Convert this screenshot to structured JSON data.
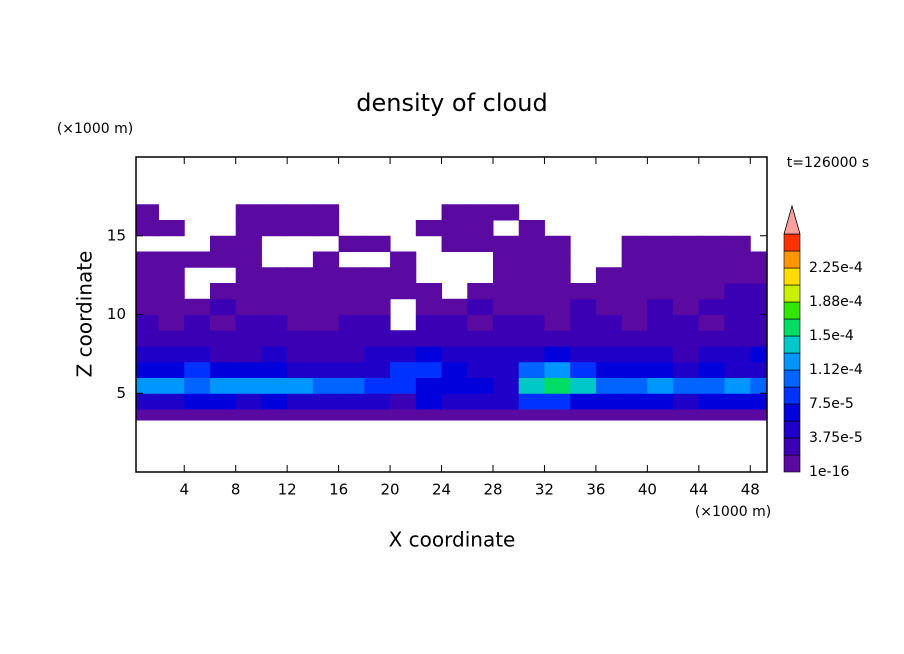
{
  "chart_data": {
    "type": "contour",
    "title": "density of cloud",
    "x_label": "X coordinate",
    "y_label": "Z coordinate",
    "x_unit": "(×1000 m)",
    "y_unit": "(×1000 m)",
    "time_label": "t=126000 s",
    "xlim": [
      0.25,
      49.3
    ],
    "ylim": [
      0,
      20
    ],
    "xticks": [
      4,
      8,
      12,
      16,
      20,
      24,
      28,
      32,
      36,
      40,
      44,
      48
    ],
    "yticks": [
      5,
      10,
      15
    ],
    "xbins": [
      0,
      2,
      4,
      6,
      8,
      10,
      12,
      14,
      16,
      18,
      20,
      22,
      24,
      26,
      28,
      30,
      32,
      34,
      36,
      38,
      40,
      42,
      44,
      46,
      48,
      50
    ],
    "ybins": [
      3.3,
      4,
      5,
      6,
      7,
      8,
      9,
      10,
      11,
      12,
      13,
      14,
      15,
      16,
      17
    ],
    "values": [
      [
        8e-06,
        8e-06,
        8e-06,
        8e-06,
        8e-06,
        8e-06,
        8e-06,
        8e-06,
        8e-06,
        8e-06,
        8e-06,
        8e-06,
        8e-06,
        8e-06,
        8e-06,
        8e-06,
        8e-06,
        8e-06,
        8e-06,
        8e-06,
        8e-06,
        8e-06,
        8e-06,
        8e-06,
        8e-06
      ],
      [
        4e-05,
        5e-05,
        6e-05,
        6e-05,
        5e-05,
        6e-05,
        5e-05,
        4e-05,
        4e-05,
        5e-05,
        3e-05,
        6e-05,
        5e-05,
        4e-05,
        4e-05,
        8e-05,
        9e-05,
        7e-05,
        6e-05,
        6e-05,
        6e-05,
        5e-05,
        6e-05,
        7e-05,
        6e-05
      ],
      [
        0.00012,
        0.00013,
        0.00011,
        0.000125,
        0.00012,
        0.00013,
        0.00012,
        0.00011,
        0.0001,
        9e-05,
        8e-05,
        7e-05,
        6e-05,
        6e-05,
        5e-05,
        0.00014,
        0.00016,
        0.00015,
        0.0001,
        0.00011,
        0.00012,
        0.0001,
        0.00011,
        0.00012,
        0.0001
      ],
      [
        6e-05,
        7e-05,
        9e-05,
        6e-05,
        7e-05,
        6e-05,
        5e-05,
        4e-05,
        5e-05,
        5e-05,
        8e-05,
        9e-05,
        7e-05,
        5e-05,
        5e-05,
        0.00011,
        0.00013,
        9e-05,
        6e-05,
        6e-05,
        6e-05,
        5e-05,
        6e-05,
        5e-05,
        5e-05
      ],
      [
        5e-05,
        4e-05,
        4e-05,
        3e-05,
        3e-05,
        4e-05,
        3e-05,
        3e-05,
        3e-05,
        4e-05,
        5e-05,
        6e-05,
        5e-05,
        4e-05,
        4e-05,
        5e-05,
        6e-05,
        5e-05,
        4e-05,
        4e-05,
        4e-05,
        3e-05,
        4e-05,
        5e-05,
        6e-05
      ],
      [
        3e-05,
        2.5e-05,
        2.5e-05,
        2e-05,
        2.5e-05,
        2e-05,
        2.5e-05,
        2e-05,
        2.5e-05,
        3e-05,
        3e-05,
        3e-05,
        2.5e-05,
        2e-05,
        2.5e-05,
        3e-05,
        2.5e-05,
        2.5e-05,
        2e-05,
        2.5e-05,
        2.5e-05,
        2e-05,
        2.5e-05,
        3e-05,
        3e-05
      ],
      [
        2e-05,
        1.5e-05,
        2e-05,
        1.5e-05,
        2e-05,
        2e-05,
        1.5e-05,
        1.5e-05,
        2e-05,
        2e-05,
        null,
        2e-05,
        2e-05,
        1.5e-05,
        2e-05,
        2e-05,
        1.5e-05,
        2e-05,
        2e-05,
        1.5e-05,
        2e-05,
        2e-05,
        1.5e-05,
        2e-05,
        2e-05
      ],
      [
        1e-05,
        1.5e-05,
        1e-05,
        2e-05,
        1.5e-05,
        1e-05,
        1.5e-05,
        1e-05,
        1.5e-05,
        1e-05,
        null,
        1.5e-05,
        1e-05,
        2e-05,
        1.5e-05,
        1e-05,
        1.5e-05,
        2e-05,
        1.5e-05,
        1e-05,
        2e-05,
        1.5e-05,
        2e-05,
        2e-05,
        2.5e-05
      ],
      [
        8e-06,
        8e-06,
        null,
        8e-06,
        8e-06,
        1e-05,
        8e-06,
        8e-06,
        1e-05,
        1e-05,
        8e-06,
        8e-06,
        null,
        8e-06,
        8e-06,
        1e-05,
        1e-05,
        8e-06,
        8e-06,
        1e-05,
        1e-05,
        1e-05,
        1.5e-05,
        2e-05,
        2e-05
      ],
      [
        8e-06,
        8e-06,
        null,
        null,
        8e-06,
        8e-06,
        8e-06,
        8e-06,
        8e-06,
        8e-06,
        8e-06,
        null,
        null,
        null,
        8e-06,
        8e-06,
        8e-06,
        null,
        8e-06,
        8e-06,
        8e-06,
        8e-06,
        1e-05,
        1e-05,
        1e-05
      ],
      [
        8e-06,
        8e-06,
        8e-06,
        8e-06,
        8e-06,
        null,
        null,
        8e-06,
        null,
        null,
        8e-06,
        null,
        null,
        null,
        8e-06,
        8e-06,
        8e-06,
        null,
        null,
        8e-06,
        8e-06,
        8e-06,
        8e-06,
        8e-06,
        8e-06
      ],
      [
        null,
        null,
        null,
        8e-06,
        8e-06,
        null,
        null,
        null,
        8e-06,
        8e-06,
        null,
        null,
        8e-06,
        8e-06,
        8e-06,
        8e-06,
        8e-06,
        null,
        null,
        8e-06,
        8e-06,
        8e-06,
        8e-06,
        8e-06,
        null
      ],
      [
        8e-06,
        8e-06,
        null,
        null,
        8e-06,
        8e-06,
        8e-06,
        8e-06,
        null,
        null,
        null,
        8e-06,
        8e-06,
        8e-06,
        null,
        8e-06,
        null,
        null,
        null,
        null,
        null,
        null,
        null,
        null,
        null
      ],
      [
        8e-06,
        null,
        null,
        null,
        8e-06,
        8e-06,
        8e-06,
        8e-06,
        null,
        null,
        null,
        null,
        8e-06,
        8e-06,
        8e-06,
        null,
        null,
        null,
        null,
        null,
        null,
        null,
        null,
        null,
        null
      ]
    ],
    "clim": [
      1e-16,
      0.0002625
    ],
    "cticks": [
      1e-16,
      {
        "value": 3.75e-05,
        "label": "3.75e-5"
      },
      {
        "value": 7.5e-05,
        "label": "7.5e-5"
      },
      {
        "value": 0.0001125,
        "label": "1.12e-4"
      },
      {
        "value": 0.00015,
        "label": "1.5e-4"
      },
      {
        "value": 0.0001875,
        "label": "1.88e-4"
      },
      {
        "value": 0.000225,
        "label": "2.25e-4"
      }
    ],
    "colors": [
      "#5a0aa0",
      "#3c00b4",
      "#1e00c8",
      "#0000dc",
      "#0032ff",
      "#0064ff",
      "#0096ff",
      "#00c8c8",
      "#00dc64",
      "#32e600",
      "#c8f000",
      "#ffdc00",
      "#ff9600",
      "#ff3200"
    ],
    "overflow_color": "#ffa0a0"
  }
}
